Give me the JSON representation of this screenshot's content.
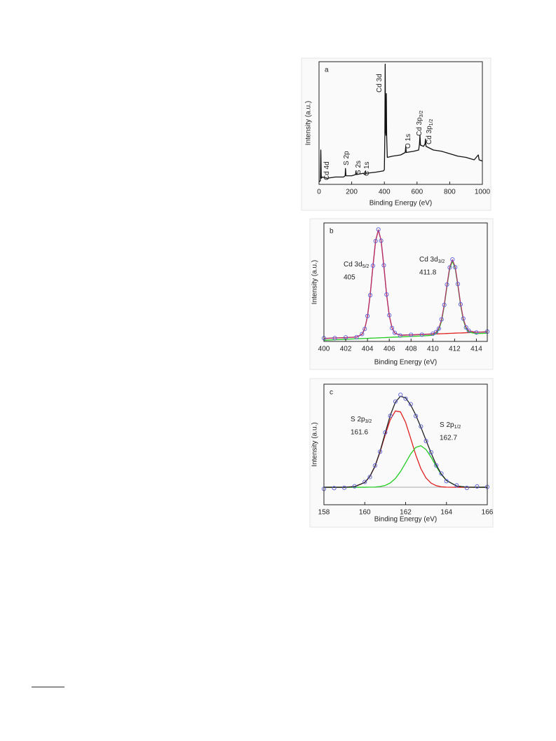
{
  "chart_data": [
    {
      "type": "line",
      "panel": "a",
      "x_label": "Binding Energy (eV)",
      "y_label": "Intensity (a.u.)",
      "xlim": [
        0,
        1000
      ],
      "xticks": [
        0,
        200,
        400,
        600,
        800,
        1000
      ],
      "ylim": [
        0,
        100
      ],
      "x": [
        0,
        8,
        11,
        14,
        20,
        50,
        100,
        150,
        160,
        162,
        165,
        200,
        224,
        226,
        229,
        270,
        283,
        285,
        288,
        350,
        395,
        400,
        403,
        405,
        407,
        410,
        412,
        414,
        418,
        450,
        500,
        528,
        531,
        534,
        580,
        610,
        615,
        618,
        621,
        640,
        649,
        652,
        655,
        700,
        750,
        800,
        850,
        900,
        950,
        975,
        980,
        1000
      ],
      "series": [
        {
          "color": "#111111",
          "values": [
            2,
            3,
            28,
            5,
            6,
            5,
            6,
            6,
            7,
            13,
            7,
            7,
            8,
            11,
            8,
            9,
            8,
            11,
            9,
            10,
            11,
            12,
            40,
            98,
            45,
            40,
            74,
            40,
            22,
            23,
            24,
            26,
            31,
            26,
            27,
            28,
            33,
            40,
            32,
            31,
            33,
            37,
            31,
            28,
            27,
            25,
            23,
            22,
            20,
            24,
            20,
            19
          ]
        }
      ],
      "annotations": [
        {
          "text": "Cd 4d",
          "color": "#e8302a"
        },
        {
          "text": "S 2p",
          "color": "#3a3ae0"
        },
        {
          "text": "S 2s",
          "color": "#3a3ae0"
        },
        {
          "text": "C 1s",
          "color": "#111111"
        },
        {
          "text": "Cd 3d",
          "color": "#e8302a"
        },
        {
          "text": "O 1s",
          "color": "#2ec62e"
        },
        {
          "text": "Cd 3p",
          "sub": "3/2",
          "color": "#e8302a"
        },
        {
          "text": "Cd 3p",
          "sub": "1/2",
          "color": "#e8302a"
        }
      ]
    },
    {
      "type": "line",
      "panel": "b",
      "x_label": "Binding Energy (eV)",
      "y_label": "Intensity (a.u.)",
      "xlim": [
        400,
        415
      ],
      "xticks": [
        400,
        402,
        404,
        406,
        408,
        410,
        412,
        414
      ],
      "ylim": [
        0,
        100
      ],
      "x": [
        400,
        401,
        402,
        403,
        403.5,
        403.75,
        404,
        404.25,
        404.5,
        404.75,
        405,
        405.25,
        405.5,
        405.75,
        406,
        406.25,
        406.5,
        407,
        408,
        409,
        410,
        410.3,
        410.55,
        410.8,
        411.05,
        411.3,
        411.55,
        411.8,
        412.05,
        412.3,
        412.55,
        412.8,
        413.05,
        413.3,
        414,
        415
      ],
      "series": [
        {
          "color": "#e02020",
          "values": [
            2.5,
            2.9,
            3.2,
            3.7,
            6.0,
            10.7,
            21.1,
            39.5,
            63.5,
            85.1,
            94.0,
            85.2,
            63.8,
            40.0,
            21.8,
            11.6,
            7.1,
            5.2,
            5.5,
            5.8,
            6.2,
            6.3,
            6.4,
            6.5,
            6.6,
            6.7,
            6.8,
            6.9,
            7.0,
            7.1,
            7.1,
            7.2,
            7.3,
            7.4,
            7.7,
            8.1
          ]
        },
        {
          "color": "#22cc22",
          "values": [
            1.0,
            1.4,
            1.8,
            2.2,
            2.4,
            2.5,
            2.6,
            2.7,
            2.8,
            2.9,
            3.0,
            3.1,
            3.2,
            3.3,
            3.4,
            3.5,
            3.6,
            3.8,
            4.2,
            4.6,
            5.2,
            6.6,
            9.9,
            17.1,
            29.9,
            46.5,
            61.5,
            67.7,
            61.7,
            46.9,
            30.5,
            17.9,
            10.9,
            7.8,
            6.6,
            7.0
          ]
        },
        {
          "color": "#b0306a",
          "values": [
            2.5,
            2.9,
            3.2,
            3.7,
            6.0,
            10.7,
            21.1,
            39.5,
            63.5,
            85.1,
            94.0,
            85.2,
            63.8,
            40.0,
            21.8,
            11.6,
            7.1,
            5.2,
            5.5,
            5.8,
            6.4,
            7.8,
            11.1,
            18.3,
            31.1,
            47.7,
            62.7,
            68.9,
            62.9,
            48.1,
            31.6,
            19.0,
            12.0,
            8.9,
            7.7,
            8.1
          ]
        },
        {
          "color": "#5a5ad8",
          "marker": "circle",
          "values": [
            2.7,
            2.8,
            3.4,
            3.6,
            6.2,
            10.5,
            21.4,
            39.0,
            63.9,
            84.7,
            94.5,
            85.0,
            64.2,
            39.6,
            22.1,
            11.3,
            7.3,
            5.0,
            5.6,
            5.7,
            6.5,
            7.9,
            10.8,
            18.6,
            30.8,
            48.0,
            62.4,
            69.2,
            62.6,
            48.4,
            31.3,
            19.3,
            11.8,
            9.1,
            7.5,
            8.3
          ]
        }
      ],
      "annotations": [
        {
          "text": "Cd 3d",
          "sub": "5/2",
          "value": "405"
        },
        {
          "text": "Cd 3d",
          "sub": "3/2",
          "value": "411.8"
        }
      ]
    },
    {
      "type": "line",
      "panel": "c",
      "x_label": "Binding Energy (eV)",
      "y_label": "Intensity (a.u.)",
      "xlim": [
        158,
        166
      ],
      "xticks": [
        158,
        160,
        162,
        164,
        166
      ],
      "ylim": [
        0,
        100
      ],
      "baseline": 14.5,
      "baseline_color": "#aaaaaa",
      "x": [
        158,
        158.5,
        159,
        159.5,
        160,
        160.25,
        160.5,
        160.75,
        161,
        161.25,
        161.5,
        161.75,
        162,
        162.25,
        162.5,
        162.75,
        163,
        163.25,
        163.5,
        163.75,
        164,
        164.5,
        165,
        165.5,
        166
      ],
      "series": [
        {
          "color": "#e02020",
          "values": [
            14.5,
            14.5,
            14.5,
            15.0,
            18.5,
            23.4,
            31.8,
            43.8,
            57.9,
            70.6,
            77.8,
            77.0,
            68.3,
            55.0,
            41.2,
            29.8,
            22.2,
            17.9,
            15.8,
            14.9,
            14.6,
            14.5,
            14.5,
            14.5,
            14.5
          ]
        },
        {
          "color": "#22cc22",
          "values": [
            14.5,
            14.5,
            14.5,
            14.5,
            14.5,
            14.6,
            14.7,
            15.1,
            16.0,
            18.1,
            21.8,
            27.5,
            34.8,
            42.2,
            47.6,
            48.9,
            45.8,
            39.4,
            31.8,
            25.0,
            20.1,
            15.5,
            14.6,
            14.5,
            14.5
          ]
        },
        {
          "color": "#222222",
          "values": [
            14.5,
            14.5,
            14.5,
            15.0,
            18.5,
            23.5,
            32.0,
            44.4,
            59.4,
            74.2,
            85.1,
            90.0,
            88.6,
            82.7,
            74.3,
            64.2,
            53.5,
            42.8,
            33.1,
            25.4,
            20.2,
            15.5,
            14.6,
            14.5,
            14.5
          ]
        },
        {
          "color": "#5a5ad8",
          "marker": "circle",
          "values": [
            13.2,
            13.8,
            14.1,
            15.3,
            18.9,
            23.0,
            32.5,
            44.0,
            59.9,
            73.8,
            85.6,
            91.2,
            88.0,
            83.4,
            73.6,
            64.9,
            52.8,
            43.5,
            32.6,
            25.9,
            19.6,
            16.0,
            14.0,
            15.2,
            14.8
          ]
        }
      ],
      "annotations": [
        {
          "text": "S 2p",
          "sub": "3/2",
          "value": "161.6"
        },
        {
          "text": "S 2p",
          "sub": "1/2",
          "value": "162.7"
        }
      ]
    }
  ]
}
